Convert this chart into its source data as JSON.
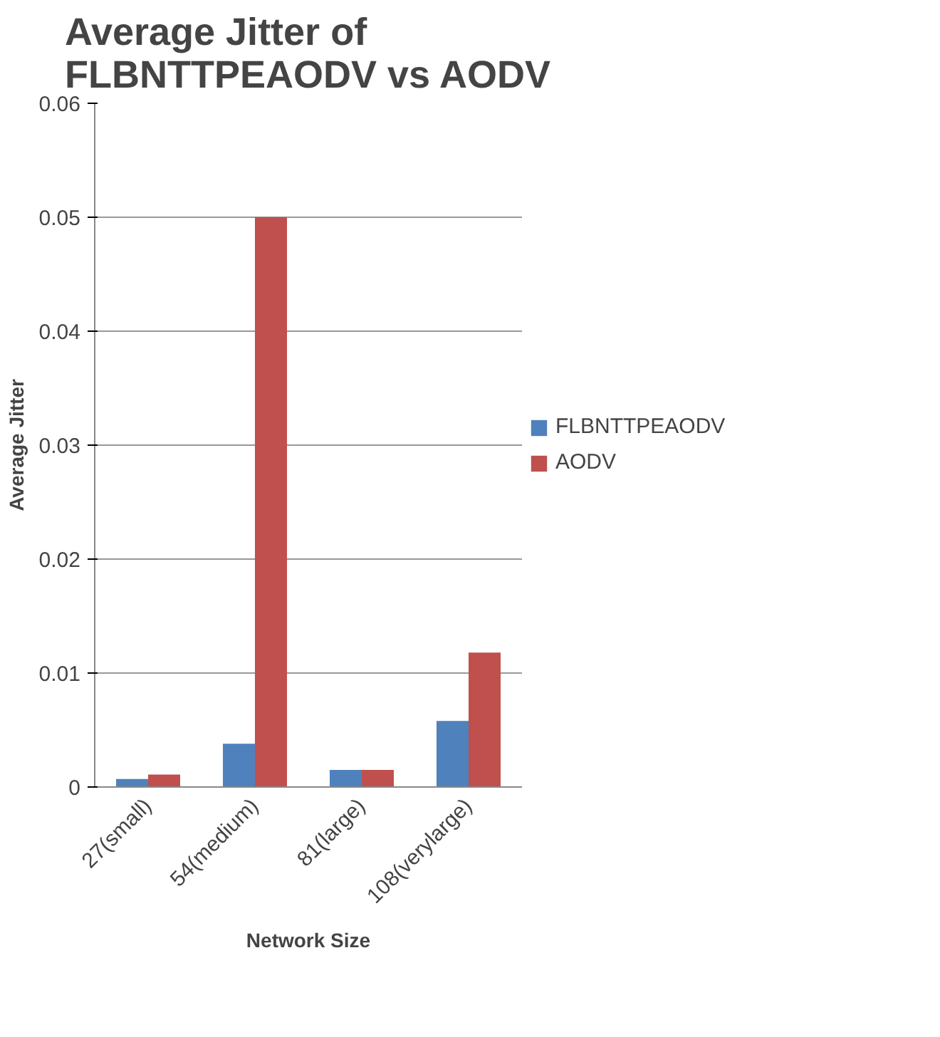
{
  "chart_data": {
    "type": "bar",
    "title": "Average Jitter of\nFLBNTTPEAODV vs AODV",
    "xlabel": "Network Size",
    "ylabel": "Average Jitter",
    "categories": [
      "27(small)",
      "54(medium)",
      "81(large)",
      "108(verylarge)"
    ],
    "series": [
      {
        "name": "FLBNTTPEAODV",
        "color": "#4f81bd",
        "values": [
          0.0007,
          0.0038,
          0.0015,
          0.0058
        ]
      },
      {
        "name": "AODV",
        "color": "#c0504d",
        "values": [
          0.0011,
          0.05,
          0.0015,
          0.0118
        ]
      }
    ],
    "ylim": [
      0,
      0.06
    ],
    "yticks": [
      0,
      0.01,
      0.02,
      0.03,
      0.04,
      0.05,
      0.06
    ],
    "grid": "y",
    "legend": "right"
  }
}
